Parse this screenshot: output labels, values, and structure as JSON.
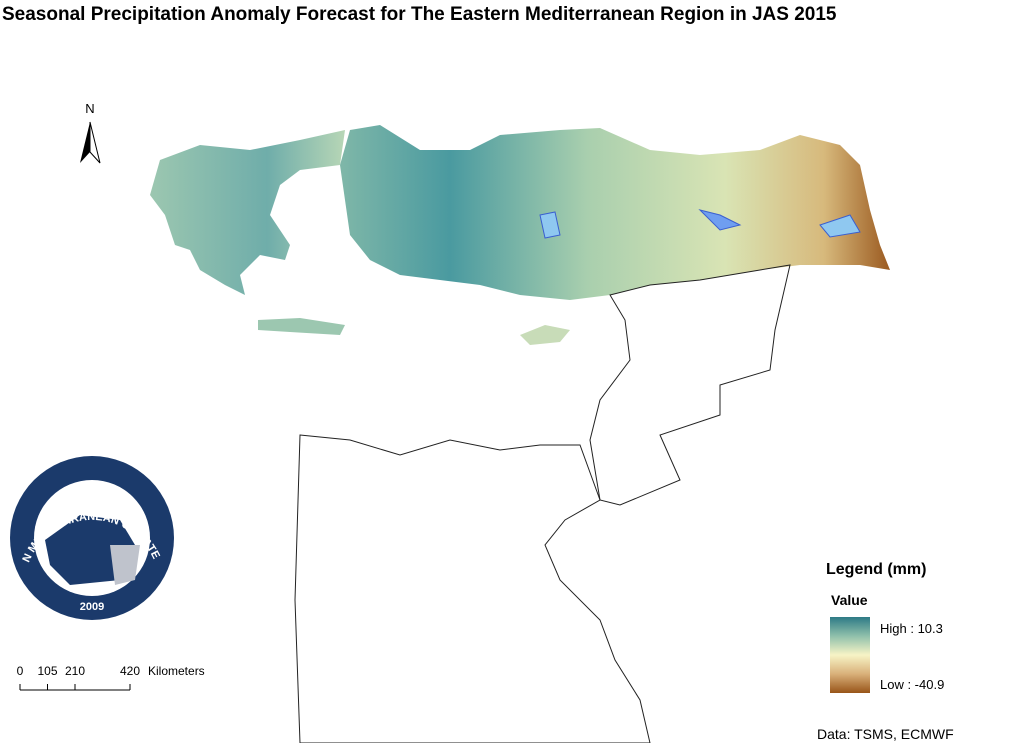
{
  "title": "Seasonal Precipitation Anomaly Forecast for The Eastern Mediterranean Region in JAS 2015",
  "north_arrow": "N",
  "logo": {
    "name": "EASTERN MEDITERRANEAN CLIMATE CENTRE",
    "year": "2009"
  },
  "scale_bar": {
    "ticks": [
      0,
      105,
      210,
      420
    ],
    "unit": "Kilometers"
  },
  "legend": {
    "title": "Legend (mm)",
    "field": "Value",
    "high": {
      "value": 10.3,
      "label": "High : 10.3"
    },
    "low": {
      "value": -40.9,
      "label": "Low : -40.9"
    }
  },
  "source": "Data: TSMS, ECMWF"
}
